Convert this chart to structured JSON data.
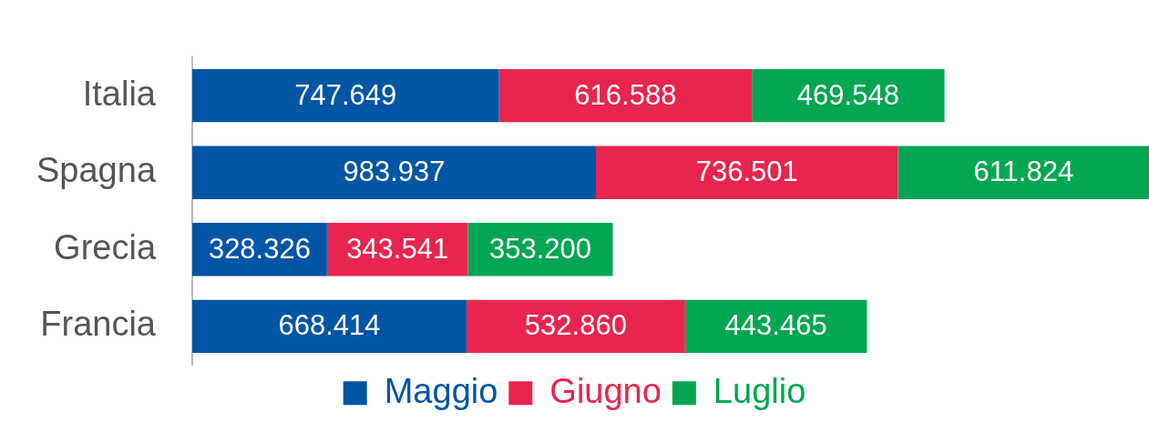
{
  "chart_data": {
    "type": "bar",
    "orientation": "horizontal",
    "stacked": true,
    "categories": [
      "Italia",
      "Spagna",
      "Grecia",
      "Francia"
    ],
    "series": [
      {
        "name": "Maggio",
        "color": "#0055a4",
        "values": [
          747649,
          983937,
          328326,
          668414
        ],
        "value_labels": [
          "747.649",
          "983.937",
          "328.326",
          "668.414"
        ]
      },
      {
        "name": "Giugno",
        "color": "#e8254f",
        "values": [
          616588,
          736501,
          343541,
          532860
        ],
        "value_labels": [
          "616.588",
          "736.501",
          "343.541",
          "532.860"
        ]
      },
      {
        "name": "Luglio",
        "color": "#00a651",
        "values": [
          469548,
          611824,
          353200,
          443465
        ],
        "value_labels": [
          "469.548",
          "611.824",
          "353.200",
          "443.465"
        ]
      }
    ],
    "tick_labels": "y",
    "legend": "bottom"
  }
}
